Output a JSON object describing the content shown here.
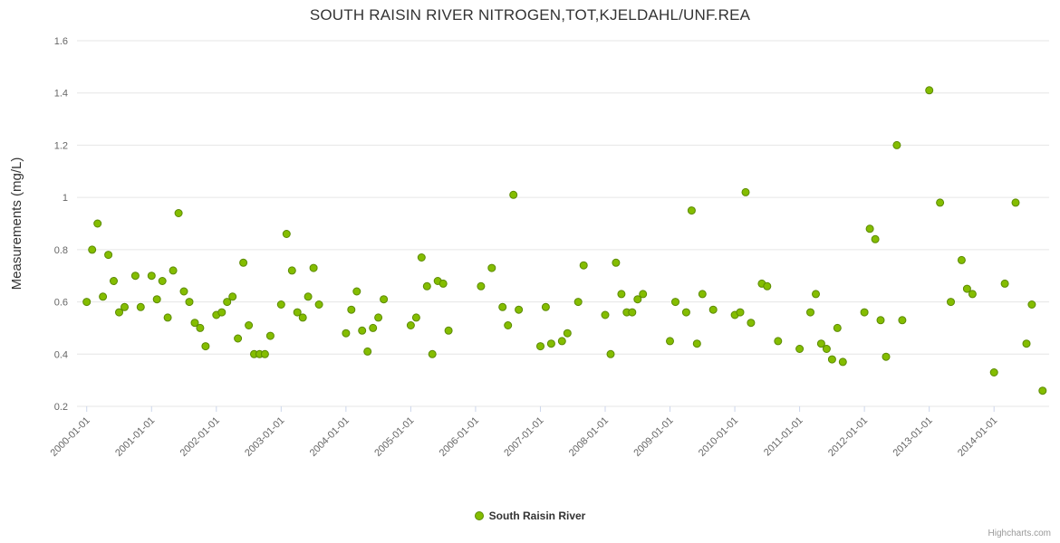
{
  "title": "SOUTH RAISIN RIVER NITROGEN,TOT,KJELDAHL/UNF.REA",
  "credit": "Highcharts.com",
  "legend": {
    "label": "South Raisin River"
  },
  "colors": {
    "point_fill": "#84bd00",
    "point_stroke": "#5b8a00",
    "grid": "#e6e6e6",
    "tick": "#ccd6eb",
    "axis_label": "#666666",
    "axis_title": "#333333",
    "title": "#333333",
    "credit": "#999999"
  },
  "chart_data": {
    "type": "scatter",
    "title": "SOUTH RAISIN RIVER NITROGEN,TOT,KJELDAHL/UNF.REA",
    "xlabel": "",
    "ylabel": "Measurements (mg/L)",
    "ylim": [
      0.2,
      1.6
    ],
    "yticks": [
      0.2,
      0.4,
      0.6,
      0.8,
      1,
      1.2,
      1.4,
      1.6
    ],
    "xtick_labels": [
      "2000-01-01",
      "2001-01-01",
      "2002-01-01",
      "2003-01-01",
      "2004-01-01",
      "2005-01-01",
      "2006-01-01",
      "2007-01-01",
      "2008-01-01",
      "2009-01-01",
      "2010-01-01",
      "2011-01-01",
      "2012-01-01",
      "2013-01-01",
      "2014-01-01"
    ],
    "grid": "horizontal",
    "legend_position": "bottom",
    "series": [
      {
        "name": "South Raisin River",
        "points": [
          [
            "2000-01-01",
            0.6
          ],
          [
            "2000-02-01",
            0.8
          ],
          [
            "2000-03-01",
            0.9
          ],
          [
            "2000-04-01",
            0.62
          ],
          [
            "2000-05-01",
            0.78
          ],
          [
            "2000-06-01",
            0.68
          ],
          [
            "2000-07-01",
            0.56
          ],
          [
            "2000-08-01",
            0.58
          ],
          [
            "2000-10-01",
            0.7
          ],
          [
            "2000-11-01",
            0.58
          ],
          [
            "2001-01-01",
            0.7
          ],
          [
            "2001-02-01",
            0.61
          ],
          [
            "2001-03-01",
            0.68
          ],
          [
            "2001-04-01",
            0.54
          ],
          [
            "2001-05-01",
            0.72
          ],
          [
            "2001-06-01",
            0.94
          ],
          [
            "2001-07-01",
            0.64
          ],
          [
            "2001-08-01",
            0.6
          ],
          [
            "2001-09-01",
            0.52
          ],
          [
            "2001-10-01",
            0.5
          ],
          [
            "2001-11-01",
            0.43
          ],
          [
            "2002-01-01",
            0.55
          ],
          [
            "2002-02-01",
            0.56
          ],
          [
            "2002-03-01",
            0.6
          ],
          [
            "2002-04-01",
            0.62
          ],
          [
            "2002-05-01",
            0.46
          ],
          [
            "2002-06-01",
            0.75
          ],
          [
            "2002-07-01",
            0.51
          ],
          [
            "2002-08-01",
            0.4
          ],
          [
            "2002-09-01",
            0.4
          ],
          [
            "2002-10-01",
            0.4
          ],
          [
            "2002-11-01",
            0.47
          ],
          [
            "2003-01-01",
            0.59
          ],
          [
            "2003-02-01",
            0.86
          ],
          [
            "2003-03-01",
            0.72
          ],
          [
            "2003-04-01",
            0.56
          ],
          [
            "2003-05-01",
            0.54
          ],
          [
            "2003-06-01",
            0.62
          ],
          [
            "2003-07-01",
            0.73
          ],
          [
            "2003-08-01",
            0.59
          ],
          [
            "2004-01-01",
            0.48
          ],
          [
            "2004-02-01",
            0.57
          ],
          [
            "2004-03-01",
            0.64
          ],
          [
            "2004-04-01",
            0.49
          ],
          [
            "2004-05-01",
            0.41
          ],
          [
            "2004-06-01",
            0.5
          ],
          [
            "2004-07-01",
            0.54
          ],
          [
            "2004-08-01",
            0.61
          ],
          [
            "2005-01-01",
            0.51
          ],
          [
            "2005-02-01",
            0.54
          ],
          [
            "2005-03-01",
            0.77
          ],
          [
            "2005-04-01",
            0.66
          ],
          [
            "2005-05-01",
            0.4
          ],
          [
            "2005-06-01",
            0.68
          ],
          [
            "2005-07-01",
            0.67
          ],
          [
            "2005-08-01",
            0.49
          ],
          [
            "2006-02-01",
            0.66
          ],
          [
            "2006-04-01",
            0.73
          ],
          [
            "2006-06-01",
            0.58
          ],
          [
            "2006-07-01",
            0.51
          ],
          [
            "2006-08-01",
            1.01
          ],
          [
            "2006-09-01",
            0.57
          ],
          [
            "2007-01-01",
            0.43
          ],
          [
            "2007-02-01",
            0.58
          ],
          [
            "2007-03-01",
            0.44
          ],
          [
            "2007-05-01",
            0.45
          ],
          [
            "2007-06-01",
            0.48
          ],
          [
            "2007-08-01",
            0.6
          ],
          [
            "2007-09-01",
            0.74
          ],
          [
            "2008-01-01",
            0.55
          ],
          [
            "2008-02-01",
            0.4
          ],
          [
            "2008-03-01",
            0.75
          ],
          [
            "2008-04-01",
            0.63
          ],
          [
            "2008-05-01",
            0.56
          ],
          [
            "2008-06-01",
            0.56
          ],
          [
            "2008-07-01",
            0.61
          ],
          [
            "2008-08-01",
            0.63
          ],
          [
            "2009-01-01",
            0.45
          ],
          [
            "2009-02-01",
            0.6
          ],
          [
            "2009-04-01",
            0.56
          ],
          [
            "2009-05-01",
            0.95
          ],
          [
            "2009-06-01",
            0.44
          ],
          [
            "2009-07-01",
            0.63
          ],
          [
            "2009-09-01",
            0.57
          ],
          [
            "2010-01-01",
            0.55
          ],
          [
            "2010-02-01",
            0.56
          ],
          [
            "2010-03-01",
            1.02
          ],
          [
            "2010-04-01",
            0.52
          ],
          [
            "2010-06-01",
            0.67
          ],
          [
            "2010-07-01",
            0.66
          ],
          [
            "2010-09-01",
            0.45
          ],
          [
            "2011-01-01",
            0.42
          ],
          [
            "2011-03-01",
            0.56
          ],
          [
            "2011-04-01",
            0.63
          ],
          [
            "2011-05-01",
            0.44
          ],
          [
            "2011-06-01",
            0.42
          ],
          [
            "2011-07-01",
            0.38
          ],
          [
            "2011-08-01",
            0.5
          ],
          [
            "2011-09-01",
            0.37
          ],
          [
            "2012-01-01",
            0.56
          ],
          [
            "2012-02-01",
            0.88
          ],
          [
            "2012-03-01",
            0.84
          ],
          [
            "2012-04-01",
            0.53
          ],
          [
            "2012-05-01",
            0.39
          ],
          [
            "2012-07-01",
            1.2
          ],
          [
            "2012-08-01",
            0.53
          ],
          [
            "2013-01-01",
            1.41
          ],
          [
            "2013-03-01",
            0.98
          ],
          [
            "2013-05-01",
            0.6
          ],
          [
            "2013-07-01",
            0.76
          ],
          [
            "2013-08-01",
            0.65
          ],
          [
            "2013-09-01",
            0.63
          ],
          [
            "2014-01-01",
            0.33
          ],
          [
            "2014-03-01",
            0.67
          ],
          [
            "2014-05-01",
            0.98
          ],
          [
            "2014-07-01",
            0.44
          ],
          [
            "2014-08-01",
            0.59
          ],
          [
            "2014-10-01",
            0.26
          ]
        ]
      }
    ]
  }
}
